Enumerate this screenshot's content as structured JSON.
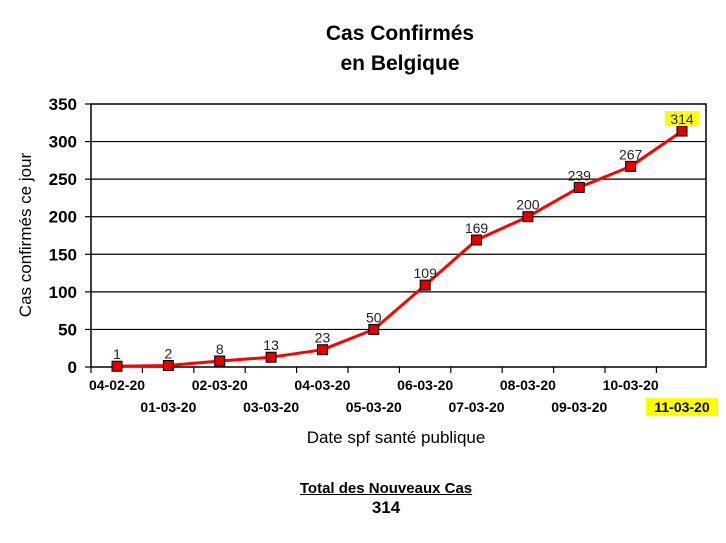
{
  "colors": {
    "line": "#ff0000",
    "marker": "#e00000",
    "highlight": "#ffff00"
  },
  "chart_data": {
    "type": "line",
    "title": [
      "Cas Confirmés",
      "en Belgique"
    ],
    "xlabel": "Date spf santé publique",
    "ylabel": "Cas confirmés ce jour",
    "ylim": [
      0,
      350
    ],
    "yticks": [
      0,
      50,
      100,
      150,
      200,
      250,
      300,
      350
    ],
    "grid": true,
    "categories": [
      "04-02-20",
      "01-03-20",
      "02-03-20",
      "03-03-20",
      "04-03-20",
      "05-03-20",
      "06-03-20",
      "07-03-20",
      "08-03-20",
      "09-03-20",
      "10-03-20",
      "11-03-20"
    ],
    "values": [
      1,
      2,
      8,
      13,
      23,
      50,
      109,
      169,
      200,
      239,
      267,
      314
    ],
    "highlighted_category": "11-03-20",
    "highlighted_value": 314
  },
  "total": {
    "label": "Total des Nouveaux Cas",
    "value": "314"
  }
}
